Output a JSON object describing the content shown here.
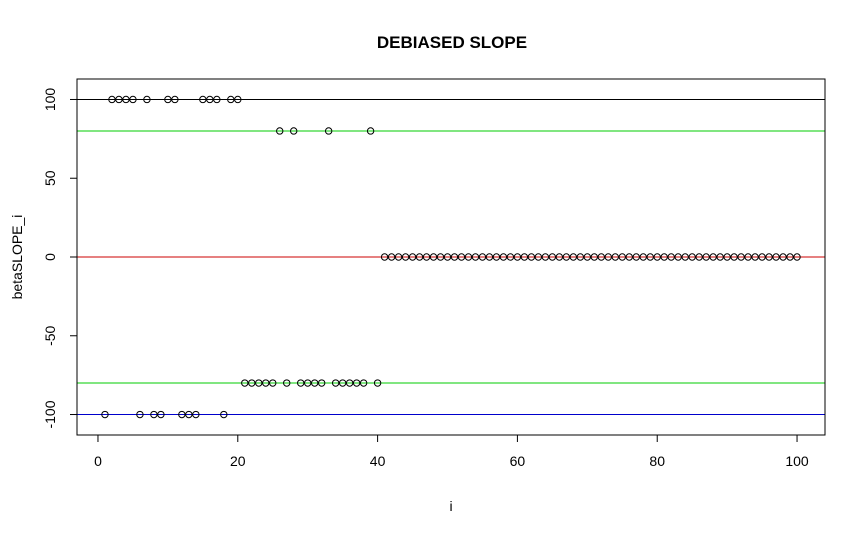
{
  "chart_data": {
    "type": "scatter",
    "title": "DEBIASED SLOPE",
    "xlabel": "i",
    "ylabel": "betaSLOPE_i",
    "xlim": [
      -3,
      104
    ],
    "ylim": [
      -113,
      113
    ],
    "xticks": [
      0,
      20,
      40,
      60,
      80,
      100
    ],
    "yticks": [
      -100,
      -50,
      0,
      50,
      100
    ],
    "xtick_labels": [
      "0",
      "20",
      "40",
      "60",
      "80",
      "100"
    ],
    "ytick_labels": [
      "-100",
      "-50",
      "0",
      "50",
      "100"
    ],
    "grid": false,
    "hlines": [
      {
        "y": 100,
        "color": "#000000"
      },
      {
        "y": 80,
        "color": "#00cc00"
      },
      {
        "y": 0,
        "color": "#cc0000"
      },
      {
        "y": -80,
        "color": "#00cc00"
      },
      {
        "y": -100,
        "color": "#0000cc"
      }
    ],
    "series": [
      {
        "marker": "open-circle",
        "color": "#000000",
        "points": [
          [
            1,
            -100
          ],
          [
            2,
            100
          ],
          [
            3,
            100
          ],
          [
            4,
            100
          ],
          [
            5,
            100
          ],
          [
            6,
            -100
          ],
          [
            7,
            100
          ],
          [
            8,
            -100
          ],
          [
            9,
            -100
          ],
          [
            10,
            100
          ],
          [
            11,
            100
          ],
          [
            12,
            -100
          ],
          [
            13,
            -100
          ],
          [
            14,
            -100
          ],
          [
            15,
            100
          ],
          [
            16,
            100
          ],
          [
            17,
            100
          ],
          [
            18,
            -100
          ],
          [
            19,
            100
          ],
          [
            20,
            100
          ],
          [
            21,
            -80
          ],
          [
            22,
            -80
          ],
          [
            23,
            -80
          ],
          [
            24,
            -80
          ],
          [
            25,
            -80
          ],
          [
            26,
            80
          ],
          [
            27,
            -80
          ],
          [
            28,
            80
          ],
          [
            29,
            -80
          ],
          [
            30,
            -80
          ],
          [
            31,
            -80
          ],
          [
            32,
            -80
          ],
          [
            33,
            80
          ],
          [
            34,
            -80
          ],
          [
            35,
            -80
          ],
          [
            36,
            -80
          ],
          [
            37,
            -80
          ],
          [
            38,
            -80
          ],
          [
            39,
            80
          ],
          [
            40,
            -80
          ],
          [
            41,
            0
          ],
          [
            42,
            0
          ],
          [
            43,
            0
          ],
          [
            44,
            0
          ],
          [
            45,
            0
          ],
          [
            46,
            0
          ],
          [
            47,
            0
          ],
          [
            48,
            0
          ],
          [
            49,
            0
          ],
          [
            50,
            0
          ],
          [
            51,
            0
          ],
          [
            52,
            0
          ],
          [
            53,
            0
          ],
          [
            54,
            0
          ],
          [
            55,
            0
          ],
          [
            56,
            0
          ],
          [
            57,
            0
          ],
          [
            58,
            0
          ],
          [
            59,
            0
          ],
          [
            60,
            0
          ],
          [
            61,
            0
          ],
          [
            62,
            0
          ],
          [
            63,
            0
          ],
          [
            64,
            0
          ],
          [
            65,
            0
          ],
          [
            66,
            0
          ],
          [
            67,
            0
          ],
          [
            68,
            0
          ],
          [
            69,
            0
          ],
          [
            70,
            0
          ],
          [
            71,
            0
          ],
          [
            72,
            0
          ],
          [
            73,
            0
          ],
          [
            74,
            0
          ],
          [
            75,
            0
          ],
          [
            76,
            0
          ],
          [
            77,
            0
          ],
          [
            78,
            0
          ],
          [
            79,
            0
          ],
          [
            80,
            0
          ],
          [
            81,
            0
          ],
          [
            82,
            0
          ],
          [
            83,
            0
          ],
          [
            84,
            0
          ],
          [
            85,
            0
          ],
          [
            86,
            0
          ],
          [
            87,
            0
          ],
          [
            88,
            0
          ],
          [
            89,
            0
          ],
          [
            90,
            0
          ],
          [
            91,
            0
          ],
          [
            92,
            0
          ],
          [
            93,
            0
          ],
          [
            94,
            0
          ],
          [
            95,
            0
          ],
          [
            96,
            0
          ],
          [
            97,
            0
          ],
          [
            98,
            0
          ],
          [
            99,
            0
          ],
          [
            100,
            0
          ]
        ]
      }
    ]
  }
}
